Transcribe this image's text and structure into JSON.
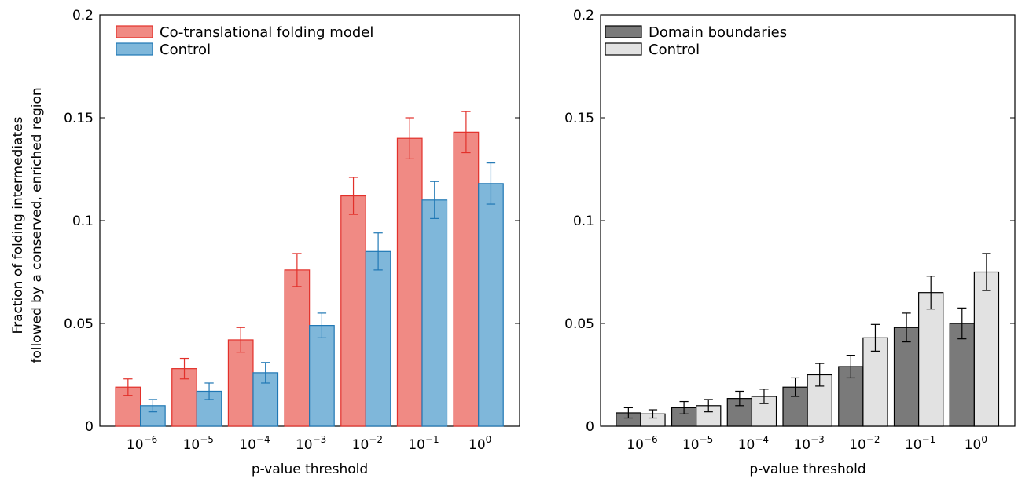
{
  "chart_data": [
    {
      "type": "bar",
      "xlabel": "p-value threshold",
      "ylabel": [
        "Fraction of folding intermediates",
        "followed by a conserved, enriched region"
      ],
      "ylim": [
        0,
        0.2
      ],
      "yticks": [
        "0",
        "0.05",
        "0.1",
        "0.15",
        "0.2"
      ],
      "categories": [
        {
          "base": "10",
          "exp": "−6"
        },
        {
          "base": "10",
          "exp": "−5"
        },
        {
          "base": "10",
          "exp": "−4"
        },
        {
          "base": "10",
          "exp": "−3"
        },
        {
          "base": "10",
          "exp": "−2"
        },
        {
          "base": "10",
          "exp": "−1"
        },
        {
          "base": "10",
          "exp": "0"
        }
      ],
      "legend_position": "top-left",
      "series": [
        {
          "name": "Co-translational folding model",
          "fill": "#f08a84",
          "edge": "#e2302a",
          "values": [
            0.019,
            0.028,
            0.042,
            0.076,
            0.112,
            0.14,
            0.143
          ],
          "err": [
            0.004,
            0.005,
            0.006,
            0.008,
            0.009,
            0.01,
            0.01
          ]
        },
        {
          "name": "Control",
          "fill": "#7fb7da",
          "edge": "#1f77b4",
          "values": [
            0.01,
            0.017,
            0.026,
            0.049,
            0.085,
            0.11,
            0.118
          ],
          "err": [
            0.003,
            0.004,
            0.005,
            0.006,
            0.009,
            0.009,
            0.01
          ]
        }
      ]
    },
    {
      "type": "bar",
      "xlabel": "p-value threshold",
      "ylim": [
        0,
        0.2
      ],
      "yticks": [
        "0",
        "0.05",
        "0.1",
        "0.15",
        "0.2"
      ],
      "categories": [
        {
          "base": "10",
          "exp": "−6"
        },
        {
          "base": "10",
          "exp": "−5"
        },
        {
          "base": "10",
          "exp": "−4"
        },
        {
          "base": "10",
          "exp": "−3"
        },
        {
          "base": "10",
          "exp": "−2"
        },
        {
          "base": "10",
          "exp": "−1"
        },
        {
          "base": "10",
          "exp": "0"
        }
      ],
      "legend_position": "top-left",
      "series": [
        {
          "name": "Domain boundaries",
          "fill": "#7a7a7a",
          "edge": "#000000",
          "values": [
            0.0065,
            0.009,
            0.0135,
            0.019,
            0.029,
            0.048,
            0.05
          ],
          "err": [
            0.0025,
            0.003,
            0.0035,
            0.0045,
            0.0055,
            0.007,
            0.0075
          ]
        },
        {
          "name": "Control",
          "fill": "#e2e2e2",
          "edge": "#000000",
          "values": [
            0.006,
            0.01,
            0.0145,
            0.025,
            0.043,
            0.065,
            0.075
          ],
          "err": [
            0.002,
            0.003,
            0.0035,
            0.0055,
            0.0065,
            0.008,
            0.009
          ]
        }
      ]
    }
  ]
}
